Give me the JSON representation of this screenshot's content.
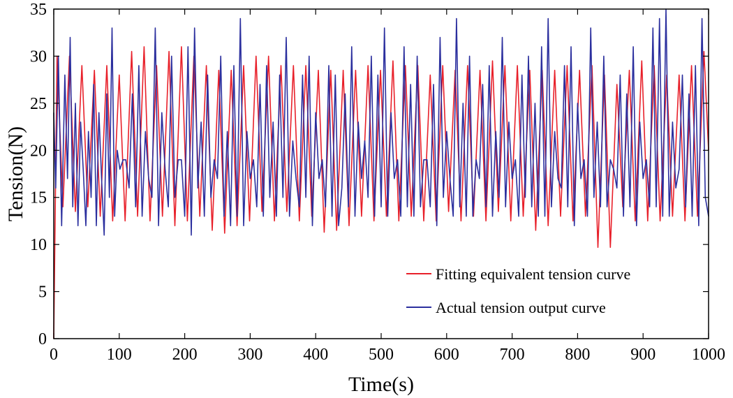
{
  "chart_data": {
    "type": "line",
    "xlabel": "Time(s)",
    "ylabel": "Tension(N)",
    "xlim": [
      0,
      1000
    ],
    "ylim": [
      0,
      35
    ],
    "xticks": [
      0,
      100,
      200,
      300,
      400,
      500,
      600,
      700,
      800,
      900,
      1000
    ],
    "yticks": [
      0,
      5,
      10,
      15,
      20,
      25,
      30,
      35
    ],
    "grid": false,
    "legend_position": "lower-right",
    "series": [
      {
        "name": "Fitting equivalent tension curve",
        "color": "#e8202a",
        "x": [
          0,
          5,
          14,
          24,
          33,
          43,
          52,
          62,
          71,
          81,
          90,
          100,
          109,
          119,
          128,
          138,
          147,
          157,
          166,
          176,
          185,
          195,
          204,
          214,
          223,
          233,
          242,
          252,
          261,
          271,
          280,
          290,
          299,
          309,
          318,
          328,
          337,
          347,
          356,
          366,
          375,
          385,
          394,
          404,
          413,
          423,
          432,
          442,
          451,
          461,
          470,
          480,
          489,
          499,
          508,
          518,
          527,
          537,
          546,
          556,
          565,
          575,
          584,
          594,
          603,
          613,
          622,
          632,
          641,
          651,
          660,
          670,
          679,
          689,
          698,
          708,
          717,
          727,
          736,
          746,
          755,
          765,
          774,
          784,
          793,
          803,
          812,
          822,
          831,
          841,
          850,
          860,
          869,
          879,
          888,
          898,
          907,
          917,
          926,
          936,
          945,
          955,
          964,
          974,
          983,
          993,
          1000
        ],
        "y": [
          0,
          30,
          14,
          30,
          13.5,
          29,
          14,
          28.5,
          13,
          29,
          12.5,
          28,
          12.5,
          30.5,
          13,
          31,
          12.5,
          29,
          13,
          30.5,
          12,
          31,
          12.5,
          30,
          13,
          29,
          11.5,
          28.5,
          11.2,
          28.5,
          12,
          29,
          12.5,
          30,
          13.5,
          30,
          12.5,
          29,
          13.5,
          29,
          12.5,
          29,
          13,
          28.5,
          11.3,
          28.5,
          11.5,
          28.5,
          12,
          28.5,
          13,
          29,
          12.5,
          28.5,
          13,
          29.5,
          12.5,
          29,
          13,
          29,
          12.5,
          28,
          12.5,
          29,
          13.5,
          28.5,
          12.5,
          29,
          13,
          28.5,
          12.5,
          29.5,
          13.5,
          29,
          12.5,
          29,
          13,
          28.5,
          11.5,
          28.5,
          12,
          28.5,
          13,
          29,
          12.5,
          28.5,
          13,
          29,
          9.7,
          28,
          9.7,
          27,
          14,
          28.5,
          12.5,
          29.5,
          12.5,
          29,
          12.5,
          28,
          13,
          28,
          12.5,
          29,
          13,
          30.5,
          20
        ]
      },
      {
        "name": "Actual tension output curve",
        "color": "#2b2f9e",
        "x": [
          0,
          3,
          7,
          12,
          17,
          21,
          25,
          29,
          33,
          37,
          41,
          45,
          49,
          53,
          57,
          61,
          65,
          69,
          73,
          77,
          81,
          85,
          89,
          93,
          97,
          101,
          106,
          110,
          115,
          120,
          125,
          130,
          135,
          140,
          145,
          150,
          155,
          160,
          165,
          170,
          175,
          180,
          185,
          190,
          195,
          200,
          205,
          210,
          215,
          220,
          225,
          230,
          235,
          240,
          245,
          250,
          255,
          260,
          265,
          270,
          275,
          280,
          285,
          290,
          295,
          300,
          305,
          310,
          315,
          320,
          325,
          330,
          335,
          340,
          345,
          350,
          355,
          360,
          365,
          370,
          375,
          380,
          385,
          390,
          395,
          400,
          405,
          410,
          415,
          420,
          425,
          430,
          435,
          440,
          445,
          450,
          455,
          460,
          465,
          470,
          475,
          480,
          485,
          490,
          495,
          500,
          505,
          510,
          515,
          520,
          525,
          530,
          535,
          540,
          545,
          550,
          555,
          560,
          565,
          570,
          575,
          580,
          585,
          590,
          595,
          600,
          605,
          610,
          615,
          620,
          625,
          630,
          635,
          640,
          645,
          650,
          655,
          660,
          665,
          670,
          675,
          680,
          685,
          690,
          695,
          700,
          705,
          710,
          715,
          720,
          725,
          730,
          735,
          740,
          745,
          750,
          755,
          760,
          765,
          770,
          775,
          780,
          785,
          790,
          795,
          800,
          805,
          810,
          815,
          820,
          825,
          830,
          835,
          840,
          845,
          850,
          855,
          860,
          865,
          870,
          875,
          880,
          885,
          890,
          895,
          900,
          905,
          910,
          915,
          920,
          925,
          930,
          935,
          940,
          945,
          950,
          955,
          960,
          965,
          970,
          975,
          980,
          985,
          990,
          995,
          1000
        ],
        "y": [
          24,
          16,
          30,
          12,
          28,
          17,
          32,
          14,
          25,
          12,
          23,
          18,
          12,
          22,
          15,
          27,
          12,
          24,
          17,
          11,
          26,
          15,
          33,
          13,
          20,
          18,
          19,
          19,
          16,
          26,
          14,
          29,
          13,
          22,
          17,
          15,
          33,
          12,
          24,
          18,
          14,
          30,
          15,
          19,
          19,
          13,
          31,
          11,
          33,
          16,
          23,
          13,
          28,
          15,
          19,
          17,
          30,
          13,
          22,
          12,
          29,
          13,
          34,
          12,
          22,
          17,
          19,
          14,
          27,
          13,
          29,
          15,
          23,
          13,
          28,
          15,
          32,
          13,
          21,
          17,
          14,
          28,
          15,
          30,
          12,
          24,
          17,
          19,
          14,
          29,
          13,
          28,
          12,
          16,
          26,
          14,
          31,
          13,
          23,
          17,
          21,
          15,
          30,
          13,
          28,
          14,
          33,
          13,
          24,
          17,
          19,
          13,
          31,
          14,
          27,
          13,
          30,
          14,
          19,
          19,
          14,
          27,
          12,
          32,
          15,
          22,
          17,
          13,
          34,
          14,
          25,
          13,
          30,
          13,
          19,
          17,
          27,
          14,
          29,
          13,
          22,
          15,
          32,
          14,
          23,
          17,
          19,
          13,
          28,
          15,
          30,
          14,
          25,
          13,
          31,
          13,
          34,
          14,
          22,
          17,
          16,
          29,
          14,
          31,
          12,
          25,
          17,
          19,
          13,
          33,
          15,
          23,
          14,
          30,
          14,
          19,
          18,
          16,
          28,
          13,
          26,
          14,
          31,
          12,
          23,
          17,
          19,
          14,
          33,
          14,
          34,
          13,
          35,
          13,
          23,
          16,
          18,
          28,
          14,
          26,
          13,
          29,
          12,
          34,
          15,
          13
        ]
      }
    ]
  }
}
